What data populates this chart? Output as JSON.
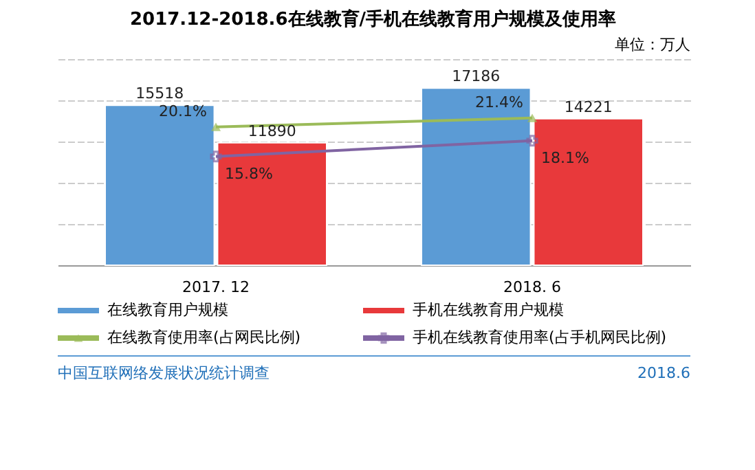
{
  "chart_data": {
    "type": "bar",
    "title": "2017.12-2018.6在线教育/手机在线教育用户规模及使用率",
    "categories": [
      "2017. 12",
      "2018. 6"
    ],
    "series": [
      {
        "name": "在线教育用户规模",
        "color": "#5b9bd5",
        "values": [
          15518,
          17186
        ]
      },
      {
        "name": "手机在线教育用户规模",
        "color": "#e8393b",
        "values": [
          11890,
          14221
        ]
      },
      {
        "name": "在线教育使用率(占网民比例)",
        "type": "line",
        "axis": "y2",
        "marker": "triangle",
        "color": "#9bbb59",
        "values": [
          20.1,
          21.4
        ],
        "value_labels": [
          "20.1%",
          "21.4%"
        ]
      },
      {
        "name": "手机在线教育使用率(占手机网民比例)",
        "type": "line",
        "axis": "y2",
        "marker": "cross",
        "color": "#8064a2",
        "values": [
          15.8,
          18.1
        ],
        "value_labels": [
          "15.8%",
          "18.1%"
        ]
      }
    ],
    "ylim": [
      0,
      20000
    ],
    "yticks": [
      {
        "value": 0,
        "label": null
      },
      {
        "value": 4000,
        "label": null
      },
      {
        "value": 8000,
        "label": null
      },
      {
        "value": 12000,
        "label": null
      },
      {
        "value": 16000,
        "label": null
      },
      {
        "value": 20000,
        "label": null
      }
    ],
    "tick_labels": "x",
    "grid": "y",
    "data_labels": true,
    "legend": "bottom",
    "annotations": [
      "单位：万人",
      "中国互联网络发展状况统计调查",
      "2018.6"
    ]
  }
}
